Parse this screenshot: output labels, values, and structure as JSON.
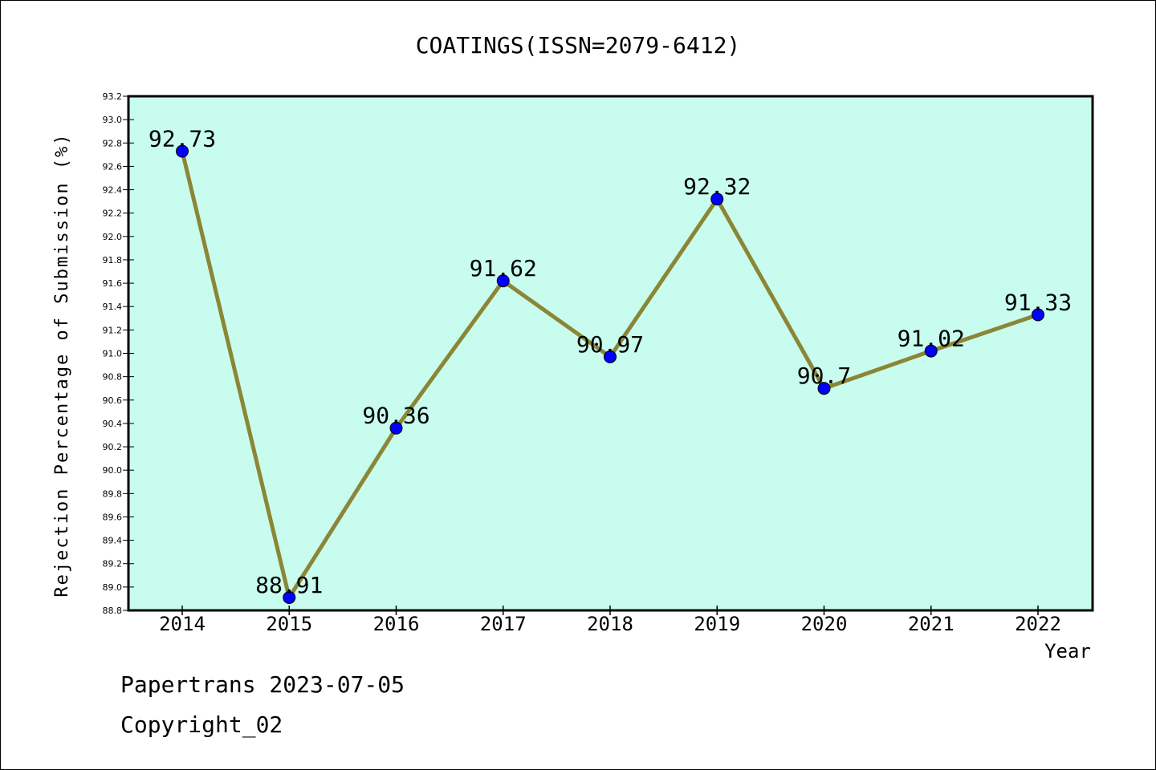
{
  "chart_data": {
    "type": "line",
    "title": "COATINGS(ISSN=2079-6412)",
    "xlabel": "Year",
    "ylabel": "Rejection Percentage of Submission (%)",
    "categories": [
      "2014",
      "2015",
      "2016",
      "2017",
      "2018",
      "2019",
      "2020",
      "2021",
      "2022"
    ],
    "values": [
      92.73,
      88.91,
      90.36,
      91.62,
      90.97,
      92.32,
      90.7,
      91.02,
      91.33
    ],
    "data_labels": [
      "92.73",
      "88.91",
      "90.36",
      "91.62",
      "90.97",
      "92.32",
      "90.7",
      "91.02",
      "91.33"
    ],
    "ylim": [
      88.8,
      93.2
    ],
    "yticks": [
      "88.8",
      "89.0",
      "89.2",
      "89.4",
      "89.6",
      "89.8",
      "90.0",
      "90.2",
      "90.4",
      "90.6",
      "90.8",
      "91.0",
      "91.2",
      "91.4",
      "91.6",
      "91.8",
      "92.0",
      "92.2",
      "92.4",
      "92.6",
      "92.8",
      "93.0",
      "93.2"
    ],
    "grid": false,
    "legend": "none",
    "colors": {
      "plot_background": "#c8fcee",
      "line": "#8b8636",
      "marker": "#0000ff",
      "axes": "#000000"
    }
  },
  "footer": {
    "line1": "Papertrans 2023-07-05",
    "line2": "Copyright_02"
  }
}
